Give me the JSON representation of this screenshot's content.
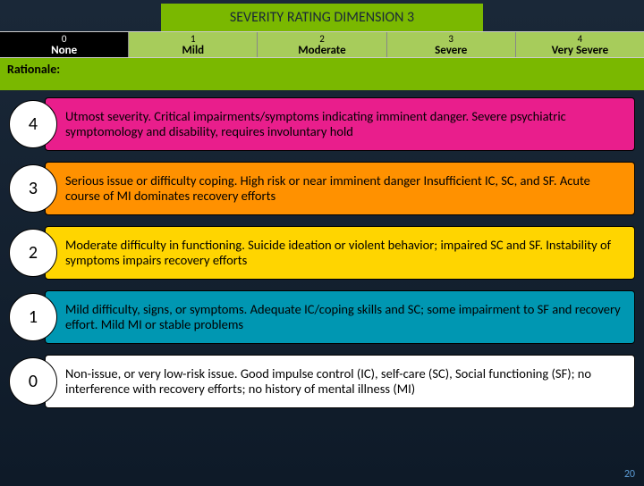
{
  "title": "SEVERITY RATING DIMENSION 3",
  "scale": [
    {
      "num": "0",
      "label": "None"
    },
    {
      "num": "1",
      "label": "Mild"
    },
    {
      "num": "2",
      "label": "Moderate"
    },
    {
      "num": "3",
      "label": "Severe"
    },
    {
      "num": "4",
      "label": "Very Severe"
    }
  ],
  "rationale_label": "Rationale:",
  "rows": [
    {
      "level": "4",
      "desc": "Utmost severity.  Critical impairments/symptoms indicating imminent danger. Severe psychiatric symptomology and disability, requires involuntary hold"
    },
    {
      "level": "3",
      "desc": "Serious issue or difficulty coping. High risk or near imminent danger Insufficient IC, SC, and SF. Acute course of MI dominates recovery efforts"
    },
    {
      "level": "2",
      "desc": "Moderate difficulty in functioning. Suicide ideation or violent behavior; impaired SC and SF. Instability of symptoms impairs recovery efforts"
    },
    {
      "level": "1",
      "desc": "Mild difficulty, signs, or symptoms.  Adequate IC/coping skills and SC; some impairment to SF and recovery effort. Mild MI or stable problems"
    },
    {
      "level": "0",
      "desc": "Non-issue, or very low-risk issue. Good impulse control (IC), self-care (SC), Social functioning (SF); no interference with recovery efforts;  no history of mental illness (MI)"
    }
  ],
  "colors": {
    "4": "#e91e8c",
    "3": "#ff9100",
    "2": "#ffd500",
    "1": "#0097b2",
    "0": "#ffffff"
  },
  "page_number": "20"
}
